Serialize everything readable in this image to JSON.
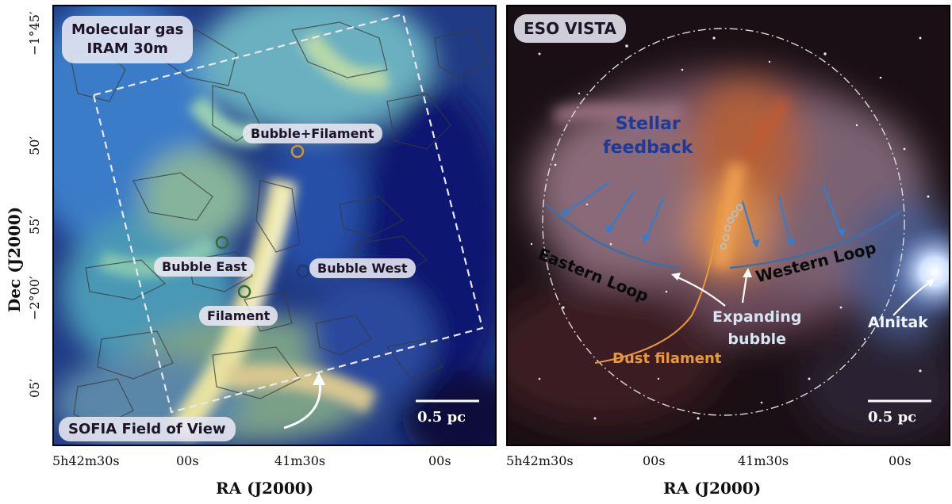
{
  "left_panel": {
    "title": "Molecular gas\nIRAM 30m",
    "title_line1": "Molecular gas",
    "title_line2": "IRAM 30m",
    "labels": {
      "bubble_filament": "Bubble+Filament",
      "bubble_east": "Bubble East",
      "bubble_west": "Bubble West",
      "filament": "Filament",
      "sofia_fov": "SOFIA Field of View"
    },
    "scale_bar": "0.5 pc"
  },
  "right_panel": {
    "title": "ESO VISTA",
    "labels": {
      "stellar_feedback_line1": "Stellar",
      "stellar_feedback_line2": "feedback",
      "eastern_loop": "Eastern Loop",
      "western_loop": "Western Loop",
      "expanding_bubble_line1": "Expanding",
      "expanding_bubble_line2": "bubble",
      "dust_filament": "Dust filament",
      "alnitak": "Alnitak"
    },
    "scale_bar": "0.5 pc"
  },
  "axes": {
    "y_title": "Dec (J2000)",
    "x_title": "RA (J2000)",
    "y_ticks": [
      "−1°45′",
      "50′",
      "55′",
      "−2°00′",
      "05′"
    ],
    "x_ticks": [
      "5h42m30s",
      "00s",
      "41m30s",
      "00s"
    ]
  },
  "colors": {
    "feedback_text": "#1c3a9a",
    "dust_filament": "#e89a3a",
    "loop_line": "#3a6fa8",
    "bubble_text": "#d8e4f2"
  }
}
